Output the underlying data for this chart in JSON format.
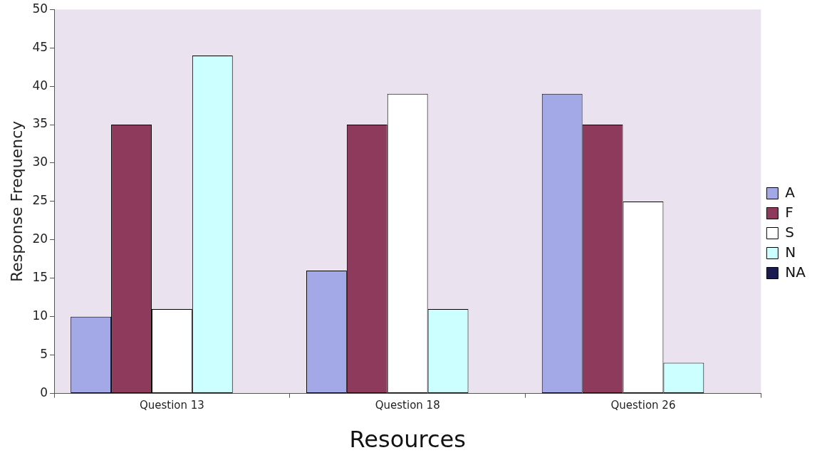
{
  "chart_data": {
    "type": "bar",
    "xlabel": "Resources",
    "ylabel": "Response Frequency",
    "categories": [
      "Question 13",
      "Question 18",
      "Question 26"
    ],
    "series": [
      {
        "name": "A",
        "color": "#a3a8e6",
        "values": [
          10,
          16,
          39
        ]
      },
      {
        "name": "F",
        "color": "#8e3a5c",
        "values": [
          35,
          35,
          35
        ]
      },
      {
        "name": "S",
        "color": "#ffffff",
        "values": [
          11,
          39,
          25
        ]
      },
      {
        "name": "N",
        "color": "#ccffff",
        "values": [
          44,
          11,
          4
        ]
      },
      {
        "name": "NA",
        "color": "#1a1a50",
        "values": [
          0,
          0,
          0
        ]
      }
    ],
    "ylim": [
      0,
      50
    ],
    "yticks": [
      0,
      5,
      10,
      15,
      20,
      25,
      30,
      35,
      40,
      45,
      50
    ],
    "grid": false,
    "legend": "right"
  }
}
